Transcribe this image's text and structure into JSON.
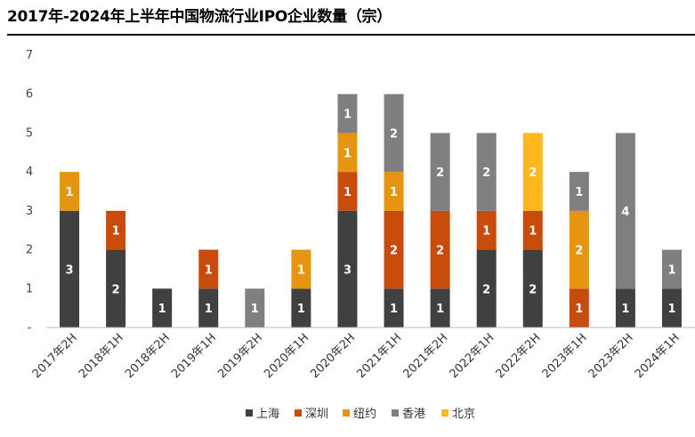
{
  "chart_data": {
    "type": "bar",
    "stacked": true,
    "title": "2017年-2024年上半年中国物流行业IPO企业数量（宗）",
    "xlabel": "",
    "ylabel": "",
    "ylim": [
      0,
      7
    ],
    "yticks": [
      "-",
      "1",
      "2",
      "3",
      "4",
      "5",
      "6",
      "7"
    ],
    "legend_position": "bottom",
    "categories": [
      "2017年2H",
      "2018年1H",
      "2018年2H",
      "2019年1H",
      "2019年2H",
      "2020年1H",
      "2020年2H",
      "2021年1H",
      "2021年2H",
      "2022年1H",
      "2022年2H",
      "2023年1H",
      "2023年2H",
      "2024年1H"
    ],
    "series": [
      {
        "name": "上海",
        "color": "#404040",
        "values": [
          3,
          2,
          1,
          1,
          0,
          1,
          3,
          1,
          1,
          2,
          2,
          0,
          1,
          1
        ]
      },
      {
        "name": "深圳",
        "color": "#c84b0c",
        "values": [
          0,
          1,
          0,
          1,
          0,
          0,
          1,
          2,
          2,
          1,
          1,
          1,
          0,
          0
        ]
      },
      {
        "name": "纽约",
        "color": "#e69510",
        "values": [
          1,
          0,
          0,
          0,
          0,
          1,
          1,
          1,
          0,
          0,
          0,
          2,
          0,
          0
        ]
      },
      {
        "name": "香港",
        "color": "#7f7f7f",
        "values": [
          0,
          0,
          0,
          0,
          1,
          0,
          1,
          2,
          2,
          2,
          0,
          1,
          4,
          1
        ]
      },
      {
        "name": "北京",
        "color": "#ffb81c",
        "values": [
          0,
          0,
          0,
          0,
          0,
          0,
          0,
          0,
          0,
          0,
          2,
          0,
          0,
          0
        ]
      }
    ]
  }
}
